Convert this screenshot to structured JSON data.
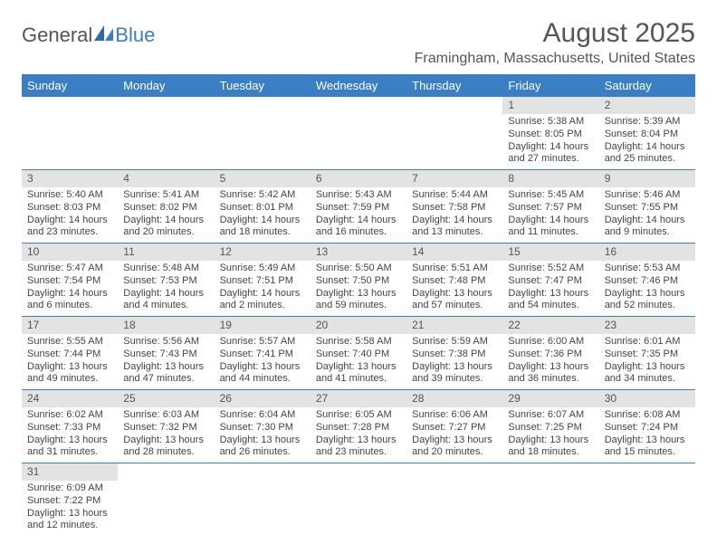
{
  "colors": {
    "header_bg": "#3a7fc4",
    "header_fg": "#ffffff",
    "text": "#444444",
    "title": "#555555",
    "daynum_bg": "#e3e3e3",
    "row_divider": "#3a7fc4"
  },
  "logo": {
    "part1": "General",
    "part2": "Blue"
  },
  "title": "August 2025",
  "location": "Framingham, Massachusetts, United States",
  "weekdays": [
    "Sunday",
    "Monday",
    "Tuesday",
    "Wednesday",
    "Thursday",
    "Friday",
    "Saturday"
  ],
  "weeks": [
    [
      null,
      null,
      null,
      null,
      null,
      {
        "n": "1",
        "sr": "Sunrise: 5:38 AM",
        "ss": "Sunset: 8:05 PM",
        "dl": "Daylight: 14 hours and 27 minutes."
      },
      {
        "n": "2",
        "sr": "Sunrise: 5:39 AM",
        "ss": "Sunset: 8:04 PM",
        "dl": "Daylight: 14 hours and 25 minutes."
      }
    ],
    [
      {
        "n": "3",
        "sr": "Sunrise: 5:40 AM",
        "ss": "Sunset: 8:03 PM",
        "dl": "Daylight: 14 hours and 23 minutes."
      },
      {
        "n": "4",
        "sr": "Sunrise: 5:41 AM",
        "ss": "Sunset: 8:02 PM",
        "dl": "Daylight: 14 hours and 20 minutes."
      },
      {
        "n": "5",
        "sr": "Sunrise: 5:42 AM",
        "ss": "Sunset: 8:01 PM",
        "dl": "Daylight: 14 hours and 18 minutes."
      },
      {
        "n": "6",
        "sr": "Sunrise: 5:43 AM",
        "ss": "Sunset: 7:59 PM",
        "dl": "Daylight: 14 hours and 16 minutes."
      },
      {
        "n": "7",
        "sr": "Sunrise: 5:44 AM",
        "ss": "Sunset: 7:58 PM",
        "dl": "Daylight: 14 hours and 13 minutes."
      },
      {
        "n": "8",
        "sr": "Sunrise: 5:45 AM",
        "ss": "Sunset: 7:57 PM",
        "dl": "Daylight: 14 hours and 11 minutes."
      },
      {
        "n": "9",
        "sr": "Sunrise: 5:46 AM",
        "ss": "Sunset: 7:55 PM",
        "dl": "Daylight: 14 hours and 9 minutes."
      }
    ],
    [
      {
        "n": "10",
        "sr": "Sunrise: 5:47 AM",
        "ss": "Sunset: 7:54 PM",
        "dl": "Daylight: 14 hours and 6 minutes."
      },
      {
        "n": "11",
        "sr": "Sunrise: 5:48 AM",
        "ss": "Sunset: 7:53 PM",
        "dl": "Daylight: 14 hours and 4 minutes."
      },
      {
        "n": "12",
        "sr": "Sunrise: 5:49 AM",
        "ss": "Sunset: 7:51 PM",
        "dl": "Daylight: 14 hours and 2 minutes."
      },
      {
        "n": "13",
        "sr": "Sunrise: 5:50 AM",
        "ss": "Sunset: 7:50 PM",
        "dl": "Daylight: 13 hours and 59 minutes."
      },
      {
        "n": "14",
        "sr": "Sunrise: 5:51 AM",
        "ss": "Sunset: 7:48 PM",
        "dl": "Daylight: 13 hours and 57 minutes."
      },
      {
        "n": "15",
        "sr": "Sunrise: 5:52 AM",
        "ss": "Sunset: 7:47 PM",
        "dl": "Daylight: 13 hours and 54 minutes."
      },
      {
        "n": "16",
        "sr": "Sunrise: 5:53 AM",
        "ss": "Sunset: 7:46 PM",
        "dl": "Daylight: 13 hours and 52 minutes."
      }
    ],
    [
      {
        "n": "17",
        "sr": "Sunrise: 5:55 AM",
        "ss": "Sunset: 7:44 PM",
        "dl": "Daylight: 13 hours and 49 minutes."
      },
      {
        "n": "18",
        "sr": "Sunrise: 5:56 AM",
        "ss": "Sunset: 7:43 PM",
        "dl": "Daylight: 13 hours and 47 minutes."
      },
      {
        "n": "19",
        "sr": "Sunrise: 5:57 AM",
        "ss": "Sunset: 7:41 PM",
        "dl": "Daylight: 13 hours and 44 minutes."
      },
      {
        "n": "20",
        "sr": "Sunrise: 5:58 AM",
        "ss": "Sunset: 7:40 PM",
        "dl": "Daylight: 13 hours and 41 minutes."
      },
      {
        "n": "21",
        "sr": "Sunrise: 5:59 AM",
        "ss": "Sunset: 7:38 PM",
        "dl": "Daylight: 13 hours and 39 minutes."
      },
      {
        "n": "22",
        "sr": "Sunrise: 6:00 AM",
        "ss": "Sunset: 7:36 PM",
        "dl": "Daylight: 13 hours and 36 minutes."
      },
      {
        "n": "23",
        "sr": "Sunrise: 6:01 AM",
        "ss": "Sunset: 7:35 PM",
        "dl": "Daylight: 13 hours and 34 minutes."
      }
    ],
    [
      {
        "n": "24",
        "sr": "Sunrise: 6:02 AM",
        "ss": "Sunset: 7:33 PM",
        "dl": "Daylight: 13 hours and 31 minutes."
      },
      {
        "n": "25",
        "sr": "Sunrise: 6:03 AM",
        "ss": "Sunset: 7:32 PM",
        "dl": "Daylight: 13 hours and 28 minutes."
      },
      {
        "n": "26",
        "sr": "Sunrise: 6:04 AM",
        "ss": "Sunset: 7:30 PM",
        "dl": "Daylight: 13 hours and 26 minutes."
      },
      {
        "n": "27",
        "sr": "Sunrise: 6:05 AM",
        "ss": "Sunset: 7:28 PM",
        "dl": "Daylight: 13 hours and 23 minutes."
      },
      {
        "n": "28",
        "sr": "Sunrise: 6:06 AM",
        "ss": "Sunset: 7:27 PM",
        "dl": "Daylight: 13 hours and 20 minutes."
      },
      {
        "n": "29",
        "sr": "Sunrise: 6:07 AM",
        "ss": "Sunset: 7:25 PM",
        "dl": "Daylight: 13 hours and 18 minutes."
      },
      {
        "n": "30",
        "sr": "Sunrise: 6:08 AM",
        "ss": "Sunset: 7:24 PM",
        "dl": "Daylight: 13 hours and 15 minutes."
      }
    ],
    [
      {
        "n": "31",
        "sr": "Sunrise: 6:09 AM",
        "ss": "Sunset: 7:22 PM",
        "dl": "Daylight: 13 hours and 12 minutes."
      },
      null,
      null,
      null,
      null,
      null,
      null
    ]
  ]
}
